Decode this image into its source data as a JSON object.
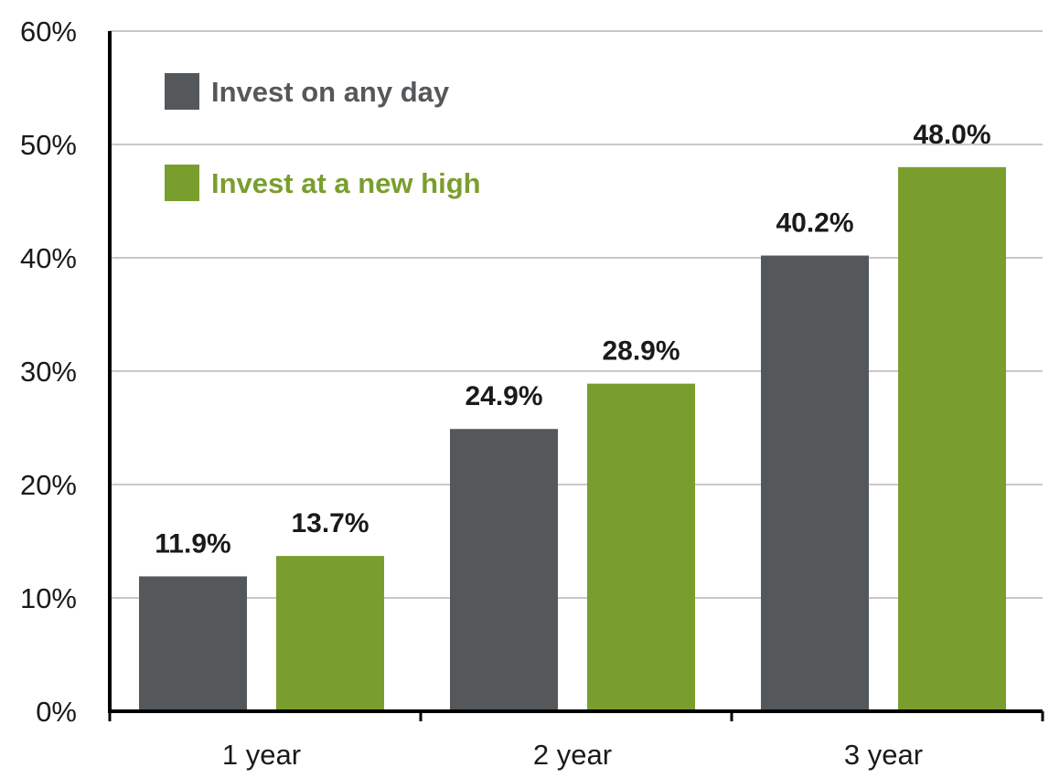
{
  "chart_data": {
    "type": "bar",
    "categories": [
      "1 year",
      "2 year",
      "3 year"
    ],
    "series": [
      {
        "name": "Invest on any day",
        "values": [
          11.9,
          24.9,
          40.2
        ],
        "labels": [
          "11.9%",
          "24.9%",
          "40.2%"
        ],
        "color": "#55585b"
      },
      {
        "name": "Invest at a new high",
        "values": [
          13.7,
          28.9,
          48.0
        ],
        "labels": [
          "13.7%",
          "28.9%",
          "48.0%"
        ],
        "color": "#7a9e2e"
      }
    ],
    "ylim": [
      0,
      60
    ],
    "yticks": [
      0,
      10,
      20,
      30,
      40,
      50,
      60
    ],
    "ytick_labels": [
      "0%",
      "10%",
      "20%",
      "30%",
      "40%",
      "50%",
      "60%"
    ],
    "grid": true,
    "legend_position": "top-left",
    "title": "",
    "xlabel": "",
    "ylabel": ""
  }
}
